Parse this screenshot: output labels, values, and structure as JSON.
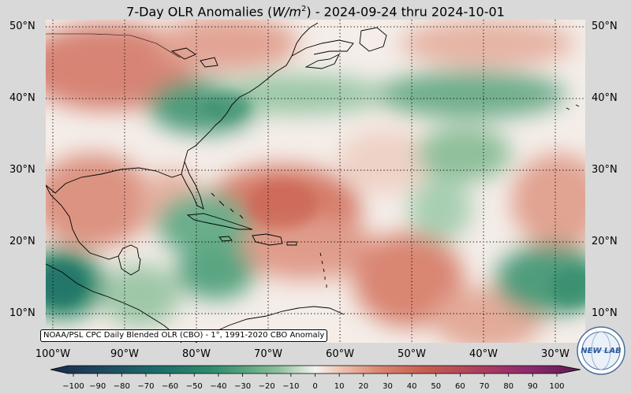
{
  "title": {
    "prefix": "7-Day OLR Anomalies (",
    "unit_base": "W/m",
    "unit_exp": "2",
    "suffix": ") - 2024-09-24 thru 2024-10-01"
  },
  "map": {
    "lon_range": [
      -101,
      -26
    ],
    "lat_range": [
      6,
      51
    ],
    "lat_labels": [
      "50°N",
      "40°N",
      "30°N",
      "20°N",
      "10°N"
    ],
    "lat_values": [
      50,
      40,
      30,
      20,
      10
    ],
    "lon_labels": [
      "100°W",
      "90°W",
      "80°W",
      "70°W",
      "60°W",
      "50°W",
      "40°W",
      "30°W"
    ],
    "lon_values": [
      -100,
      -90,
      -80,
      -70,
      -60,
      -50,
      -40,
      -30
    ],
    "gridlines": "dotted",
    "positive_color": "#c95f4f",
    "negative_color": "#2e8a6a",
    "neutral_color": "#f7f4f0"
  },
  "source_note": "NOAA/PSL CPC Daily Blended OLR (CBO) - 1°, 1991-2020 CBO Anomaly",
  "colorbar": {
    "ticks": [
      "−100",
      "−90",
      "−80",
      "−70",
      "−60",
      "−50",
      "−40",
      "−30",
      "−20",
      "−10",
      "0",
      "10",
      "20",
      "30",
      "40",
      "50",
      "60",
      "70",
      "80",
      "90",
      "100"
    ],
    "min": -100,
    "max": 100,
    "colors": [
      "#1b2a4a",
      "#1f4a5e",
      "#1e6b6b",
      "#2e8a6a",
      "#5aa582",
      "#8fc09b",
      "#c3dbc4",
      "#f4f3ef",
      "#edc1ae",
      "#d98873",
      "#c95f4f",
      "#b0415c",
      "#8e2a6e",
      "#5a1a4e"
    ]
  },
  "logo": {
    "text": "NEW LAB",
    "icon": "lab-logo-globe"
  }
}
